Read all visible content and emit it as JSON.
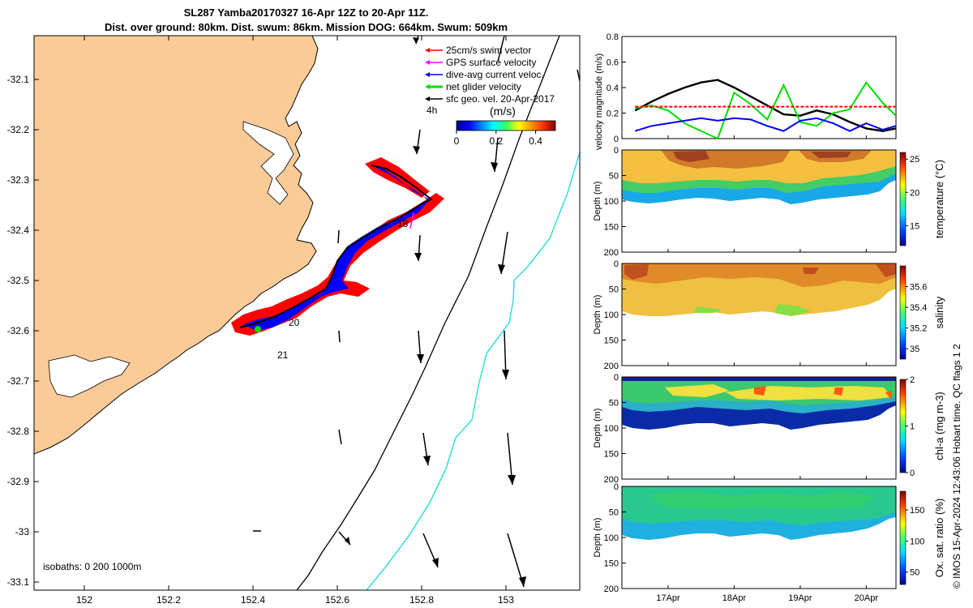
{
  "header": {
    "line1": "SL287 Yamba20170327 16-Apr 12Z to 20-Apr 11Z.",
    "line2": "Dist. over ground: 80km. Dist. swum: 86km. Mission DOG: 664km. Swum: 509km"
  },
  "map": {
    "lon_ticks": [
      "152",
      "152.2",
      "152.4",
      "152.6",
      "152.8",
      "153"
    ],
    "lat_ticks": [
      "-32.1",
      "-32.2",
      "-32.3",
      "-32.4",
      "-32.5",
      "-32.6",
      "-32.7",
      "-32.8",
      "-32.9",
      "-33",
      "-33.1"
    ],
    "legend": [
      {
        "label": "25cm/s swim vector",
        "color": "#ff0000"
      },
      {
        "label": "GPS surface velocity",
        "color": "#ff00ff"
      },
      {
        "label": "dive-avg current veloc.",
        "color": "#0000ff"
      },
      {
        "label": "net glider velocity",
        "color": "#00dd00"
      },
      {
        "label": "sfc geo. vel. 20-Apr-2017",
        "color": "#000000"
      }
    ],
    "time_label_4h": "4h",
    "colorbar_title": "(m/s)",
    "colorbar_ticks": [
      "0",
      "0.2",
      "0.4"
    ],
    "track_labels": [
      "18",
      "20",
      "21"
    ],
    "isobaths_label": "isobaths: 0   200  1000m",
    "colors": {
      "land": "#fbcb97",
      "track_red": "#ff0000",
      "track_blue": "#0000ff",
      "isobath_1000": "#33dddd"
    }
  },
  "chart_data": [
    {
      "type": "line",
      "ylabel": "velocity magnitude (m/s)",
      "ylim": [
        0,
        0.8
      ],
      "yticks": [
        "0",
        "0.2",
        "0.4",
        "0.6",
        "0.8"
      ],
      "x": [
        16.5,
        16.75,
        17.0,
        17.25,
        17.5,
        17.75,
        18.0,
        18.25,
        18.5,
        18.75,
        19.0,
        19.25,
        19.5,
        19.75,
        20.0,
        20.25,
        20.45
      ],
      "series": [
        {
          "color": "#000000",
          "values": [
            0.22,
            0.29,
            0.35,
            0.4,
            0.44,
            0.46,
            0.4,
            0.33,
            0.26,
            0.19,
            0.18,
            0.22,
            0.19,
            0.13,
            0.08,
            0.06,
            0.08
          ]
        },
        {
          "color": "#00dd00",
          "values": [
            0.24,
            0.26,
            0.22,
            0.12,
            0.06,
            0.0,
            0.36,
            0.27,
            0.15,
            0.42,
            0.13,
            0.1,
            0.2,
            0.23,
            0.44,
            0.28,
            0.18
          ]
        },
        {
          "color": "#0000ff",
          "values": [
            0.06,
            0.1,
            0.12,
            0.14,
            0.16,
            0.14,
            0.16,
            0.15,
            0.1,
            0.06,
            0.14,
            0.16,
            0.12,
            0.06,
            0.12,
            0.07,
            0.1
          ]
        },
        {
          "color": "#ff0000",
          "values": [
            0.25,
            0.25,
            0.25,
            0.25,
            0.25,
            0.25,
            0.25,
            0.25,
            0.25,
            0.25,
            0.25,
            0.25,
            0.25,
            0.25,
            0.25,
            0.25,
            0.25
          ]
        }
      ]
    },
    {
      "type": "heatmap",
      "ylabel": "Depth (m)",
      "clabel": "temperature (°C)",
      "clim": [
        12,
        26
      ],
      "cticks": [
        "15",
        "20",
        "25"
      ],
      "yticks": [
        "0",
        "50",
        "100",
        "150",
        "200"
      ],
      "ylim": [
        0,
        200
      ]
    },
    {
      "type": "heatmap",
      "ylabel": "Depth (m)",
      "clabel": "salinity",
      "clim": [
        34.9,
        35.8
      ],
      "cticks": [
        "35",
        "35.2",
        "35.4",
        "35.6"
      ],
      "yticks": [
        "0",
        "50",
        "100",
        "150",
        "200"
      ],
      "ylim": [
        0,
        200
      ]
    },
    {
      "type": "heatmap",
      "ylabel": "Depth (m)",
      "clabel": "chl-a (mg m-3)",
      "clim": [
        0,
        2
      ],
      "cticks": [
        "0",
        "1",
        "2"
      ],
      "yticks": [
        "0",
        "50",
        "100",
        "150",
        "200"
      ],
      "ylim": [
        0,
        200
      ]
    },
    {
      "type": "heatmap",
      "ylabel": "Depth (m)",
      "clabel": "Ox. sat. ratio (%)",
      "clim": [
        30,
        180
      ],
      "cticks": [
        "50",
        "100",
        "150"
      ],
      "yticks": [
        "0",
        "50",
        "100",
        "150",
        "200"
      ],
      "ylim": [
        0,
        200
      ]
    }
  ],
  "time_axis": {
    "ticks": [
      "17Apr",
      "18Apr",
      "19Apr",
      "20Apr"
    ]
  },
  "credit": "© IMOS 15-Apr-2024 12:43:06 Hobart time. QC flags 1  2"
}
